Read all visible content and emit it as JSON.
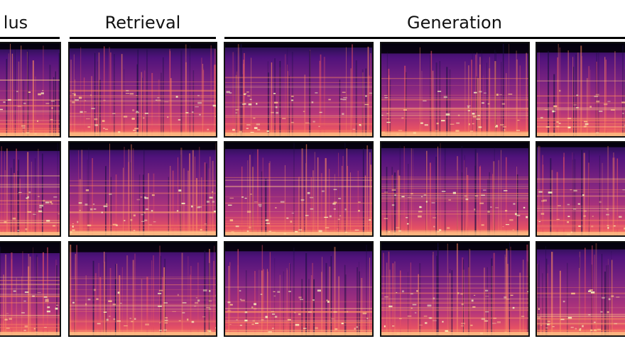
{
  "headers": {
    "stimulus": "lus",
    "retrieval": "Retrieval",
    "generation": "Generation"
  },
  "colormap": [
    "#000004",
    "#1c1044",
    "#4f127b",
    "#812581",
    "#b5367a",
    "#e55064",
    "#fb8761",
    "#fec287",
    "#fcfdbf"
  ],
  "grid": {
    "rows": 3,
    "columns": [
      "stimulus",
      "retrieval",
      "generation-1",
      "generation-2",
      "generation-3"
    ]
  }
}
